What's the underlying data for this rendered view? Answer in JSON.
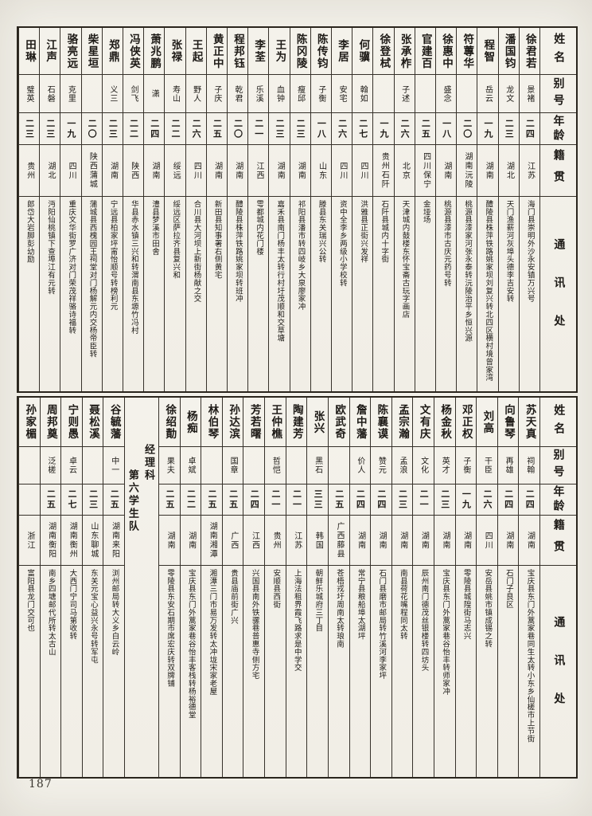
{
  "page": {
    "number": "187"
  },
  "headers": {
    "name": "姓名",
    "alias": "别号",
    "age": "年龄",
    "native": "籍贯",
    "address": "通讯处"
  },
  "top_table": {
    "students": [
      {
        "name": "徐君若",
        "alias": "景褚",
        "age": "二四",
        "native": "江苏",
        "address": "海门县崇明外沙永安镇万兴号"
      },
      {
        "name": "潘国钧",
        "alias": "龙文",
        "age": "二三",
        "native": "湖北",
        "address": "天门渔薪河灰埠头德李吉安转"
      },
      {
        "name": "程智",
        "alias": "岳云",
        "age": "一九",
        "native": "湖南",
        "address": "醴陵县株萍铁路姚家坝刘复兴转北四区横村境曾家湾"
      },
      {
        "name": "符蓴华",
        "alias": "",
        "age": "二〇",
        "native": "湖南沅陵",
        "address": "桃源县漆家河张永泰转沅陵治平乡恒兴源"
      },
      {
        "name": "徐惠中",
        "alias": "盛念",
        "age": "一八",
        "native": "湖南",
        "address": "桃源县漆市古庆元药号转"
      },
      {
        "name": "官建百",
        "alias": "",
        "age": "二五",
        "native": "四川保宁",
        "address": "金垭场"
      },
      {
        "name": "张承柞",
        "alias": "子述",
        "age": "二六",
        "native": "北京",
        "address": "天津城内鼓楼东怀宝斋古玩字画店"
      },
      {
        "name": "徐登栻",
        "alias": "",
        "age": "一九",
        "native": "贵州石阡",
        "address": "石阡县城内十字街"
      },
      {
        "name": "何骥",
        "alias": "翰如",
        "age": "二七",
        "native": "四川",
        "address": "洪雅县正街兴发祥"
      },
      {
        "name": "李居",
        "alias": "安宅",
        "age": "二六",
        "native": "四川",
        "address": "资中全李乡两级小学校转"
      },
      {
        "name": "陈传钧",
        "alias": "子衡",
        "age": "一八",
        "native": "山东",
        "address": "滕县东关瑞兴公转"
      },
      {
        "name": "陈冈陵",
        "alias": "瘦邱",
        "age": "二三",
        "native": "湖南",
        "address": "祁阳县潘市转四岐乡大泉廖家冲"
      },
      {
        "name": "王为",
        "alias": "血钟",
        "age": "二三",
        "native": "湖南",
        "address": "嘉禾县南门杨丰太转行村圩茂顺和交草塘"
      },
      {
        "name": "李荃",
        "alias": "乐溪",
        "age": "二一",
        "native": "江西",
        "address": "雩都城内花门楼"
      },
      {
        "name": "程邦钰",
        "alias": "乾君",
        "age": "二〇",
        "native": "湖南",
        "address": "醴陵县株萍铁路姚家坝转班冲"
      },
      {
        "name": "黄正中",
        "alias": "子庆",
        "age": "二五",
        "native": "湖南",
        "address": "新田县知事署右侧黄宅"
      },
      {
        "name": "王起",
        "alias": "野人",
        "age": "二六",
        "native": "四川",
        "address": "合川县大河坝上新街杨献之交"
      },
      {
        "name": "张禄",
        "alias": "寿山",
        "age": "二二",
        "native": "绥远",
        "address": "绥远区萨拉齐县复兴和"
      },
      {
        "name": "萧兆鹏",
        "alias": "潇",
        "age": "二四",
        "native": "湖南",
        "address": "澧县梦溪市田舍"
      },
      {
        "name": "冯侠英",
        "alias": "剑飞",
        "age": "二二",
        "native": "陕西",
        "address": "华县赤水镇三兴和转渭南县东塬竹冯村"
      },
      {
        "name": "郑鼎",
        "alias": "义三",
        "age": "二三",
        "native": "湖南",
        "address": "宁远县柏家坪甯怡顺号转榜利元"
      },
      {
        "name": "柴星垣",
        "alias": "",
        "age": "二〇",
        "native": "陕西蒲城",
        "address": "蒲城县西槐园王祠堂对门杨解元内交杨帝臣转"
      },
      {
        "name": "骆亮远",
        "alias": "克里",
        "age": "一九",
        "native": "四川",
        "address": "重庆文华街罗广济对门荣茂祥骆诗福转"
      },
      {
        "name": "江声",
        "alias": "石磐",
        "age": "二三",
        "native": "湖北",
        "address": "沔阳仙桃镇下查埠江有元转"
      },
      {
        "name": "田琳",
        "alias": "璧英",
        "age": "二三",
        "native": "贵州",
        "address": "郎岱大岩脚彭幼励"
      }
    ]
  },
  "bottom_table": {
    "section_label": "经理科\n　　第六学生队",
    "divider_before_index": 18,
    "students": [
      {
        "name": "苏天真",
        "alias": "祠翰",
        "age": "二四",
        "native": "湖南",
        "address": "宝庆县东门外蒿家巷同生太转小东乡仙槎市上节街"
      },
      {
        "name": "向鲁琴",
        "alias": "再雄",
        "age": "二四",
        "native": "湖南",
        "address": "石门子良区"
      },
      {
        "name": "刘高",
        "alias": "干臣",
        "age": "二六",
        "native": "四川",
        "address": "安岳县姚市镇成锡之转"
      },
      {
        "name": "邓正权",
        "alias": "子衡",
        "age": "一九",
        "native": "湖南",
        "address": "零陵县城隍街马志兴"
      },
      {
        "name": "杨金秋",
        "alias": "英才",
        "age": "二三",
        "native": "湖南",
        "address": "宝庆县东门外蒿家巷谷怡丰转师家冲"
      },
      {
        "name": "文有庆",
        "alias": "文化",
        "age": "二一",
        "native": "湖南",
        "address": "辰州南门德茂丝银楼转四坊头"
      },
      {
        "name": "孟宗瀚",
        "alias": "孟浪",
        "age": "二三",
        "native": "湖南",
        "address": "南县荷花嘴程同太转"
      },
      {
        "name": "陈襄谟",
        "alias": "赞元",
        "age": "二四",
        "native": "湖南",
        "address": "石门县磨市邮局转竹溪河李家坪"
      },
      {
        "name": "詹中藩",
        "alias": "价人",
        "age": "二四",
        "native": "湖南",
        "address": "常宁县粮船埠太湖坪"
      },
      {
        "name": "欧武奇",
        "alias": "",
        "age": "二五",
        "native": "广西藤县",
        "address": "苍梧戎圩周南太转琅南"
      },
      {
        "name": "张兴",
        "alias": "黑石",
        "age": "三三",
        "native": "韩国",
        "address": "朝鲜乐城府三丁目"
      },
      {
        "name": "陶建芳",
        "alias": "",
        "age": "二一",
        "native": "江苏",
        "address": "上海法租界霞飞路求是中学交"
      },
      {
        "name": "王仲樵",
        "alias": "哲恺",
        "age": "二一",
        "native": "贵州",
        "address": "安顺县西街"
      },
      {
        "name": "芳若曙",
        "alias": "",
        "age": "二四",
        "native": "江西",
        "address": "兴国县南外铁骡巷普惠寺侧方宅"
      },
      {
        "name": "孙达滨",
        "alias": "国章",
        "age": "二五",
        "native": "广西",
        "address": "贵县庙前街广兴"
      },
      {
        "name": "林伯琴",
        "alias": "",
        "age": "二五",
        "native": "湖南湘潭",
        "address": "湘潭三门市易万发转太冲垅宋家老屋"
      },
      {
        "name": "杨痴",
        "alias": "卓斌",
        "age": "二二",
        "native": "湖南",
        "address": "宝庆县东门外蒿家巷谷怡丰客栈转杨裕德堂"
      },
      {
        "name": "徐绍勣",
        "alias": "果夫",
        "age": "二五",
        "native": "湖南",
        "address": "零陵县东安石期市席宏庆转双牌铺"
      },
      {
        "name": "谷毓藩",
        "alias": "中一",
        "age": "二五",
        "native": "湖南来阳",
        "address": "浏州邮局转大义乡白云岭"
      },
      {
        "name": "聂松溪",
        "alias": "",
        "age": "二三",
        "native": "山东聊城",
        "address": "东关元宝心益兴永号转军屯"
      },
      {
        "name": "宁则愚",
        "alias": "卓云",
        "age": "二七",
        "native": "湖南衡州",
        "address": "大西门宁司马第收转"
      },
      {
        "name": "周邦奠",
        "alias": "泛槎",
        "age": "二五",
        "native": "湖南衡阳",
        "address": "南乡四塘邮代所转太古山"
      },
      {
        "name": "孙家楣",
        "alias": "",
        "age": "",
        "native": "浙江",
        "address": "富阳县龙门交可也"
      }
    ]
  }
}
